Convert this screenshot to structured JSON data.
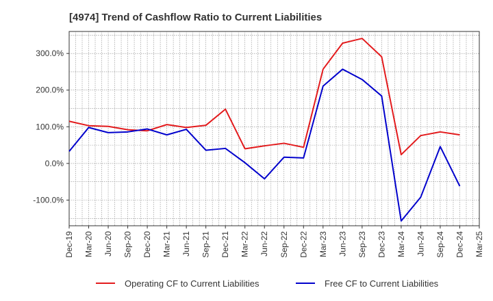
{
  "chart_data": {
    "type": "line",
    "title": "[4974]  Trend of Cashflow Ratio to Current Liabilities",
    "xlabel": "",
    "ylabel": "",
    "x": [
      "Dec-19",
      "Mar-20",
      "Jun-20",
      "Sep-20",
      "Dec-20",
      "Mar-21",
      "Jun-21",
      "Sep-21",
      "Dec-21",
      "Mar-22",
      "Jun-22",
      "Sep-22",
      "Dec-22",
      "Mar-23",
      "Jun-23",
      "Sep-23",
      "Dec-23",
      "Mar-24",
      "Jun-24",
      "Sep-24",
      "Dec-24",
      "Mar-25"
    ],
    "series": [
      {
        "name": "Operating CF to Current Liabilities",
        "color": "#e31a1c",
        "values": [
          115,
          103,
          101,
          92,
          89,
          106,
          98,
          104,
          148,
          40,
          48,
          55,
          44,
          257,
          328,
          341,
          291,
          24,
          76,
          86,
          78,
          null
        ]
      },
      {
        "name": "Free CF to Current Liabilities",
        "color": "#0000cc",
        "values": [
          33,
          98,
          84,
          86,
          94,
          78,
          93,
          36,
          41,
          2,
          -42,
          17,
          15,
          211,
          257,
          229,
          184,
          -157,
          -92,
          46,
          -62,
          null
        ]
      }
    ],
    "ylim": [
      -170,
      360
    ],
    "yticks": [
      -100,
      0,
      100,
      200,
      300
    ],
    "ytick_labels": [
      "-100.0%",
      "0.0%",
      "100.0%",
      "200.0%",
      "300.0%"
    ],
    "grid": true,
    "legend_position": "bottom"
  }
}
